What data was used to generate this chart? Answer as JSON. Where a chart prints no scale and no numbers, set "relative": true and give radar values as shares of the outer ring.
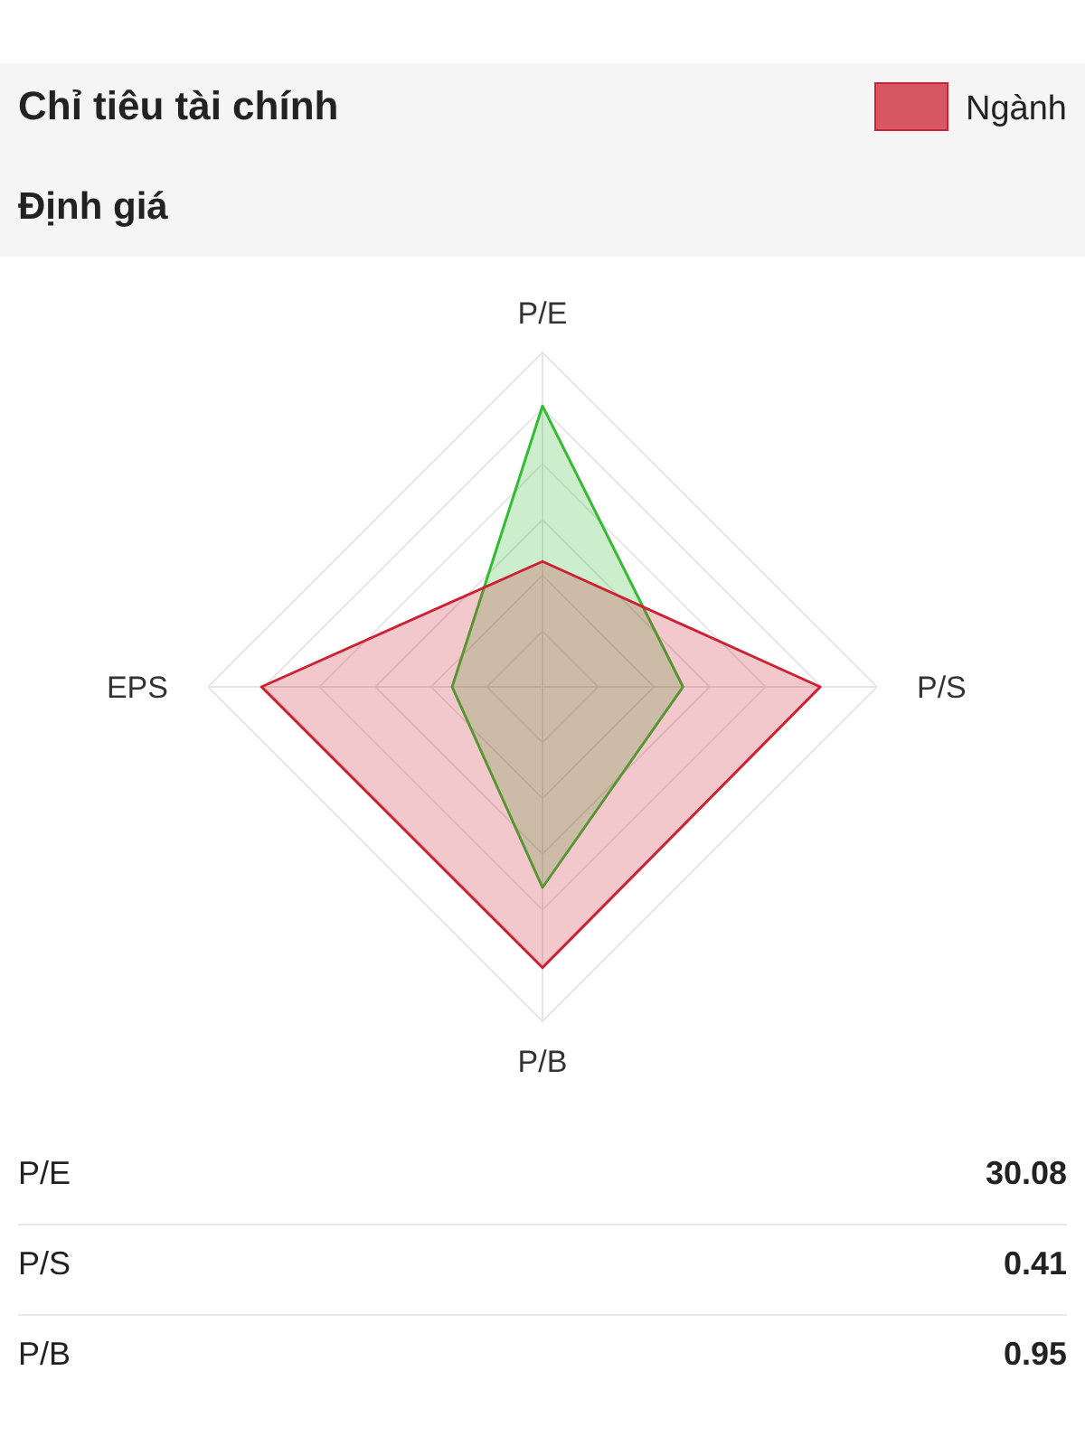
{
  "chart_data": {
    "type": "radar",
    "title": "Chỉ tiêu tài chính",
    "subtitle": "Định giá",
    "categories": [
      "P/E",
      "P/S",
      "P/B",
      "EPS"
    ],
    "relative": true,
    "grid": true,
    "legend": "top right",
    "series": [
      {
        "color": "#33bb33",
        "values": [
          0.84,
          0.42,
          0.6,
          0.27
        ]
      },
      {
        "name": "Ngành",
        "color": "#cc2233",
        "values": [
          0.375,
          0.83,
          0.84,
          0.84
        ]
      }
    ],
    "annotations": [
      "P/E",
      "30.08",
      "P/S",
      "0.41",
      "P/B",
      "0.95"
    ]
  }
}
